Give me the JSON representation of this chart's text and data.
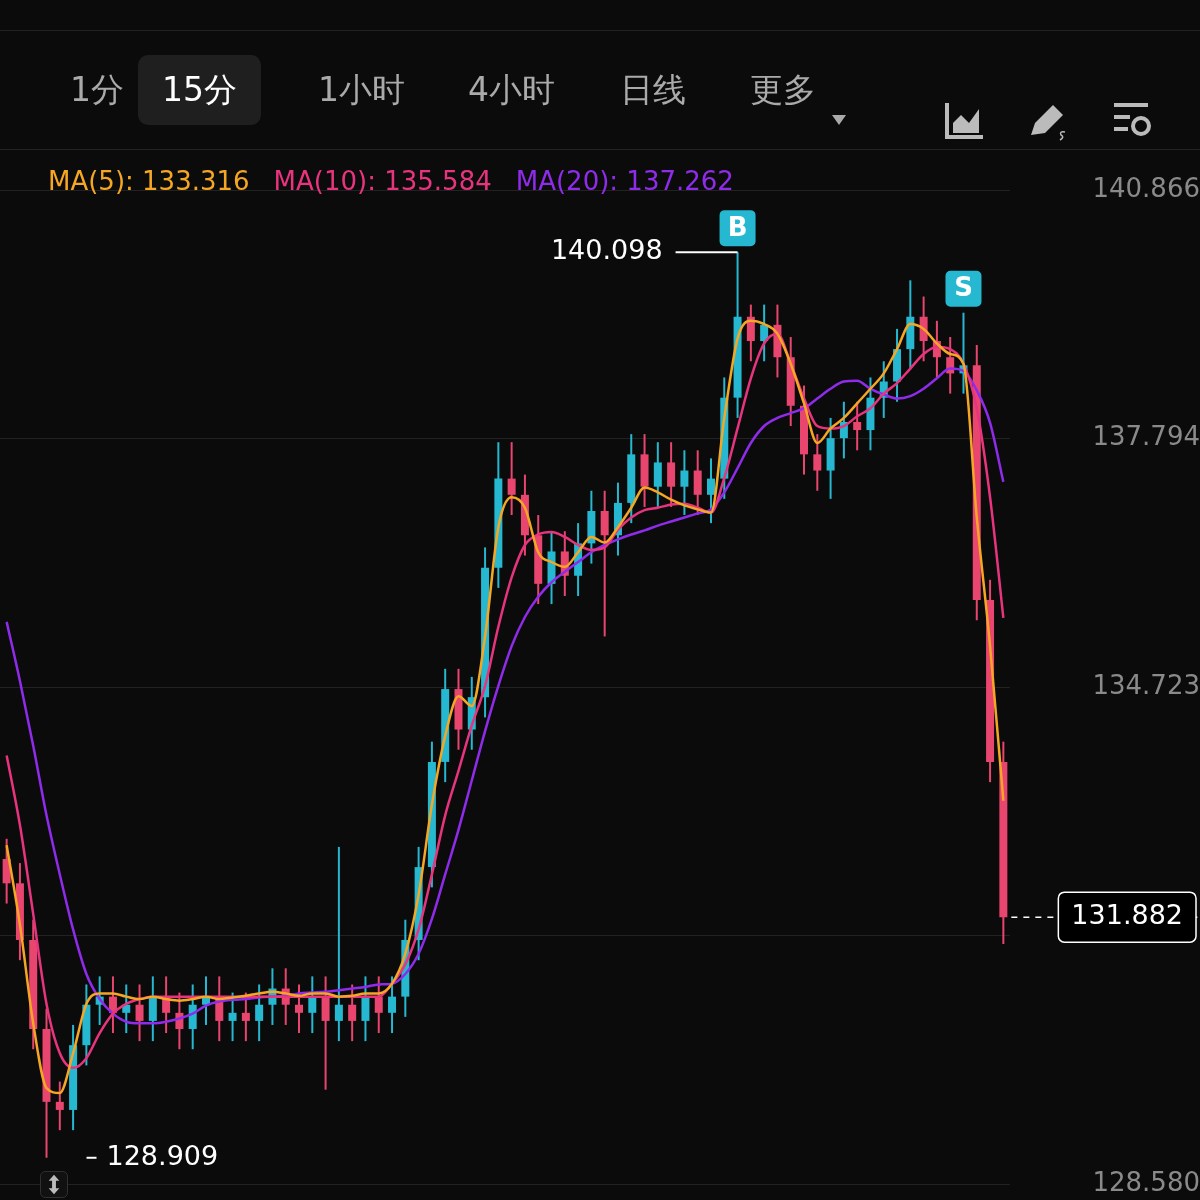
{
  "chart_data": {
    "type": "candlestick",
    "categories": [
      null,
      null,
      null,
      null,
      null,
      null,
      null,
      null,
      null,
      null,
      null,
      null,
      null,
      null,
      null,
      null,
      null,
      null,
      null,
      null,
      null,
      null,
      null,
      null,
      null,
      null,
      null,
      null,
      null,
      null,
      null,
      null,
      null,
      null,
      null,
      null,
      null,
      null,
      null,
      null,
      null,
      null,
      null,
      null,
      null,
      null,
      null,
      null,
      null,
      null,
      null,
      null,
      null,
      null,
      null,
      null,
      null,
      null,
      null,
      null,
      null,
      null,
      null,
      null,
      null,
      null,
      null,
      null,
      null,
      null,
      null,
      null,
      null,
      null,
      null,
      null
    ],
    "ohlc": [
      [
        132.6,
        132.85,
        132.05,
        132.3
      ],
      [
        132.3,
        132.55,
        131.35,
        131.6
      ],
      [
        131.6,
        131.85,
        130.25,
        130.5
      ],
      [
        130.5,
        130.75,
        128.909,
        129.6
      ],
      [
        129.6,
        129.85,
        129.25,
        129.5
      ],
      [
        129.5,
        130.55,
        129.25,
        130.3
      ],
      [
        130.3,
        131.05,
        130.05,
        130.8
      ],
      [
        130.8,
        131.15,
        130.55,
        130.9
      ],
      [
        130.9,
        131.15,
        130.45,
        130.7
      ],
      [
        130.7,
        131.05,
        130.45,
        130.8
      ],
      [
        130.8,
        131.05,
        130.35,
        130.6
      ],
      [
        130.6,
        131.15,
        130.35,
        130.9
      ],
      [
        130.9,
        131.15,
        130.45,
        130.7
      ],
      [
        130.7,
        130.95,
        130.25,
        130.5
      ],
      [
        130.5,
        131.05,
        130.25,
        130.8
      ],
      [
        130.8,
        131.15,
        130.55,
        130.9
      ],
      [
        130.9,
        131.15,
        130.35,
        130.6
      ],
      [
        130.6,
        130.95,
        130.35,
        130.7
      ],
      [
        130.7,
        130.95,
        130.35,
        130.6
      ],
      [
        130.6,
        131.05,
        130.35,
        130.8
      ],
      [
        130.8,
        131.25,
        130.55,
        131.0
      ],
      [
        131.0,
        131.25,
        130.55,
        130.8
      ],
      [
        130.8,
        131.05,
        130.45,
        130.7
      ],
      [
        130.7,
        131.15,
        130.45,
        130.9
      ],
      [
        130.9,
        131.15,
        129.75,
        130.6
      ],
      [
        130.6,
        132.75,
        130.35,
        130.8
      ],
      [
        130.8,
        131.05,
        130.35,
        130.6
      ],
      [
        130.6,
        131.15,
        130.35,
        130.9
      ],
      [
        130.9,
        131.15,
        130.45,
        130.7
      ],
      [
        130.7,
        131.15,
        130.45,
        130.9
      ],
      [
        130.9,
        131.85,
        130.65,
        131.6
      ],
      [
        131.6,
        132.75,
        131.35,
        132.5
      ],
      [
        132.5,
        134.05,
        132.25,
        133.8
      ],
      [
        133.8,
        134.95,
        133.55,
        134.7
      ],
      [
        134.7,
        134.95,
        133.95,
        134.2
      ],
      [
        134.2,
        134.85,
        133.95,
        134.6
      ],
      [
        134.6,
        136.45,
        134.35,
        136.2
      ],
      [
        136.2,
        137.75,
        135.95,
        137.3
      ],
      [
        137.3,
        137.75,
        136.85,
        137.1
      ],
      [
        137.1,
        137.35,
        136.35,
        136.6
      ],
      [
        136.6,
        136.85,
        135.75,
        136.0
      ],
      [
        136.0,
        136.65,
        135.75,
        136.4
      ],
      [
        136.4,
        136.65,
        135.85,
        136.1
      ],
      [
        136.1,
        136.75,
        135.85,
        136.5
      ],
      [
        136.5,
        137.15,
        136.25,
        136.9
      ],
      [
        136.9,
        137.15,
        135.35,
        136.6
      ],
      [
        136.6,
        137.25,
        136.35,
        137.0
      ],
      [
        137.0,
        137.85,
        136.75,
        137.6
      ],
      [
        137.6,
        137.85,
        136.95,
        137.2
      ],
      [
        137.2,
        137.75,
        136.95,
        137.5
      ],
      [
        137.5,
        137.75,
        136.95,
        137.2
      ],
      [
        137.2,
        137.65,
        136.85,
        137.4
      ],
      [
        137.4,
        137.65,
        136.85,
        137.1
      ],
      [
        137.1,
        137.55,
        136.75,
        137.3
      ],
      [
        137.3,
        138.55,
        137.05,
        138.3
      ],
      [
        138.3,
        140.098,
        138.05,
        139.3
      ],
      [
        139.3,
        139.45,
        138.75,
        139.0
      ],
      [
        139.0,
        139.45,
        138.75,
        139.2
      ],
      [
        139.2,
        139.45,
        138.55,
        138.8
      ],
      [
        138.8,
        139.05,
        137.95,
        138.2
      ],
      [
        138.2,
        138.45,
        137.35,
        137.6
      ],
      [
        137.6,
        137.85,
        137.15,
        137.4
      ],
      [
        137.4,
        138.05,
        137.05,
        137.8
      ],
      [
        137.8,
        138.25,
        137.55,
        138.0
      ],
      [
        138.0,
        138.25,
        137.65,
        137.9
      ],
      [
        137.9,
        138.55,
        137.65,
        138.3
      ],
      [
        138.3,
        138.75,
        138.05,
        138.5
      ],
      [
        138.5,
        139.15,
        138.25,
        138.9
      ],
      [
        138.9,
        139.75,
        138.65,
        139.3
      ],
      [
        139.3,
        139.55,
        138.75,
        139.0
      ],
      [
        139.0,
        139.25,
        138.55,
        138.8
      ],
      [
        138.8,
        139.05,
        138.35,
        138.6
      ],
      [
        138.6,
        139.35,
        138.35,
        138.7
      ],
      [
        138.7,
        138.95,
        135.55,
        135.8
      ],
      [
        135.8,
        136.05,
        133.55,
        133.8
      ],
      [
        133.8,
        134.05,
        131.55,
        131.882
      ]
    ],
    "colors": [
      "#e8456f",
      "#e8456f",
      "#e8456f",
      "#e8456f",
      "#e8456f",
      "#26b8d0",
      "#26b8d0",
      "#26b8d0",
      "#e8456f",
      "#26b8d0",
      "#e8456f",
      "#26b8d0",
      "#e8456f",
      "#e8456f",
      "#26b8d0",
      "#26b8d0",
      "#e8456f",
      "#26b8d0",
      "#e8456f",
      "#26b8d0",
      "#26b8d0",
      "#e8456f",
      "#e8456f",
      "#26b8d0",
      "#e8456f",
      "#26b8d0",
      "#e8456f",
      "#26b8d0",
      "#e8456f",
      "#26b8d0",
      "#26b8d0",
      "#26b8d0",
      "#26b8d0",
      "#26b8d0",
      "#e8456f",
      "#26b8d0",
      "#26b8d0",
      "#26b8d0",
      "#e8456f",
      "#e8456f",
      "#e8456f",
      "#26b8d0",
      "#e8456f",
      "#26b8d0",
      "#26b8d0",
      "#e8456f",
      "#26b8d0",
      "#26b8d0",
      "#e8456f",
      "#26b8d0",
      "#e8456f",
      "#26b8d0",
      "#e8456f",
      "#26b8d0",
      "#26b8d0",
      "#26b8d0",
      "#e8456f",
      "#26b8d0",
      "#e8456f",
      "#e8456f",
      "#e8456f",
      "#e8456f",
      "#26b8d0",
      "#26b8d0",
      "#e8456f",
      "#26b8d0",
      "#26b8d0",
      "#26b8d0",
      "#26b8d0",
      "#e8456f",
      "#e8456f",
      "#e8456f",
      "#26b8d0",
      "#e8456f",
      "#e8456f",
      "#e8456f"
    ],
    "series": [
      {
        "type": "line",
        "name": "MA(5): 133.316",
        "color": "#f5a623",
        "values": [
          132.77,
          131.79,
          130.57,
          129.77,
          129.71,
          130.2,
          130.81,
          130.94,
          130.94,
          130.9,
          130.87,
          130.9,
          130.87,
          130.85,
          130.87,
          130.9,
          130.87,
          130.89,
          130.91,
          130.94,
          130.96,
          130.94,
          130.91,
          130.94,
          130.94,
          130.9,
          130.91,
          130.94,
          130.94,
          131.06,
          131.43,
          132.16,
          133.27,
          134.12,
          134.61,
          134.49,
          135.35,
          136.7,
          137.07,
          136.94,
          136.39,
          136.27,
          136.21,
          136.39,
          136.58,
          136.51,
          136.7,
          136.94,
          137.19,
          137.13,
          137.04,
          136.97,
          136.92,
          136.88,
          138.05,
          139.03,
          139.25,
          139.21,
          139.09,
          138.72,
          138.23,
          137.74,
          137.92,
          138.05,
          138.23,
          138.41,
          138.6,
          138.9,
          139.21,
          139.15,
          138.97,
          138.84,
          138.72,
          136.82,
          135.23,
          133.32
        ]
      },
      {
        "type": "line",
        "name": "MA(10): 135.584",
        "color": "#e8337f",
        "values": [
          133.88,
          133.02,
          131.92,
          130.81,
          130.2,
          130.02,
          130.14,
          130.45,
          130.69,
          130.81,
          130.87,
          130.9,
          130.9,
          130.9,
          130.9,
          130.9,
          130.9,
          130.9,
          130.9,
          130.9,
          130.9,
          130.9,
          130.9,
          130.9,
          130.9,
          130.9,
          130.9,
          130.9,
          130.9,
          131.06,
          131.3,
          131.73,
          132.41,
          133.14,
          133.69,
          134.25,
          134.74,
          135.47,
          136.08,
          136.48,
          136.61,
          136.64,
          136.58,
          136.48,
          136.42,
          136.45,
          136.67,
          136.82,
          136.91,
          136.94,
          136.98,
          136.99,
          136.94,
          136.88,
          137.31,
          137.92,
          138.54,
          138.97,
          139.09,
          138.72,
          138.29,
          137.95,
          137.92,
          137.95,
          138.07,
          138.17,
          138.35,
          138.48,
          138.66,
          138.84,
          138.93,
          138.9,
          138.72,
          138.17,
          137.07,
          135.58
        ]
      },
      {
        "type": "line",
        "name": "MA(20): 137.262",
        "color": "#8f2bea",
        "values": [
          135.53,
          134.8,
          134.0,
          133.14,
          132.41,
          131.73,
          131.18,
          130.87,
          130.69,
          130.59,
          130.57,
          130.57,
          130.59,
          130.63,
          130.69,
          130.79,
          130.84,
          130.86,
          130.87,
          130.89,
          130.9,
          130.91,
          130.94,
          130.95,
          130.96,
          130.98,
          131.0,
          131.02,
          131.05,
          131.06,
          131.18,
          131.43,
          131.86,
          132.41,
          132.96,
          133.57,
          134.18,
          134.74,
          135.23,
          135.59,
          135.84,
          136.02,
          136.15,
          136.27,
          136.39,
          136.48,
          136.55,
          136.61,
          136.66,
          136.72,
          136.77,
          136.82,
          136.87,
          136.92,
          137.13,
          137.43,
          137.74,
          137.95,
          138.05,
          138.11,
          138.17,
          138.29,
          138.41,
          138.5,
          138.51,
          138.41,
          138.34,
          138.29,
          138.32,
          138.41,
          138.54,
          138.66,
          138.63,
          138.39,
          137.99,
          137.26
        ]
      }
    ],
    "ylim": [
      128.58,
      140.866
    ],
    "yticks": [
      140.866,
      137.794,
      134.723,
      {
        "value": 131.651,
        "label": null
      },
      {
        "value": 128.58,
        "label": "128.580"
      }
    ],
    "grid": "y",
    "legend": "top",
    "tick_labels": "y",
    "marker": "none",
    "ref_lines": [
      {
        "axis": "y",
        "value": 131.882,
        "label": "131.882",
        "line_style": "dashed",
        "color": "#ffffff"
      }
    ],
    "annotations": [
      "1分",
      "15分",
      "1小时",
      "4小时",
      "日线",
      "更多",
      "140.098",
      "128.909",
      {
        "text": "B",
        "y": 139.3
      },
      {
        "text": "S",
        "y": 138.7
      }
    ]
  }
}
